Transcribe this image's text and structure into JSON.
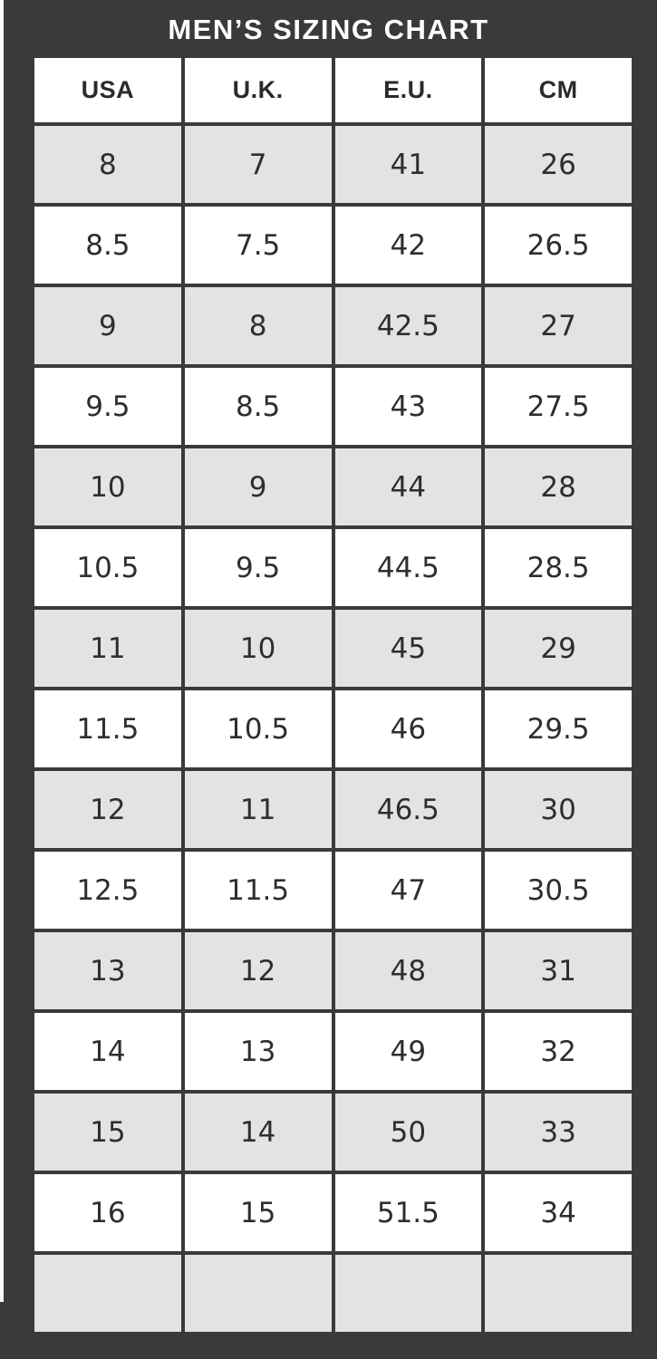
{
  "title": "MEN’S SIZING CHART",
  "chart_data": {
    "type": "table",
    "title": "MEN’S SIZING CHART",
    "columns": [
      "USA",
      "U.K.",
      "E.U.",
      "CM"
    ],
    "rows": [
      [
        "8",
        "7",
        "41",
        "26"
      ],
      [
        "8.5",
        "7.5",
        "42",
        "26.5"
      ],
      [
        "9",
        "8",
        "42.5",
        "27"
      ],
      [
        "9.5",
        "8.5",
        "43",
        "27.5"
      ],
      [
        "10",
        "9",
        "44",
        "28"
      ],
      [
        "10.5",
        "9.5",
        "44.5",
        "28.5"
      ],
      [
        "11",
        "10",
        "45",
        "29"
      ],
      [
        "11.5",
        "10.5",
        "46",
        "29.5"
      ],
      [
        "12",
        "11",
        "46.5",
        "30"
      ],
      [
        "12.5",
        "11.5",
        "47",
        "30.5"
      ],
      [
        "13",
        "12",
        "48",
        "31"
      ],
      [
        "14",
        "13",
        "49",
        "32"
      ],
      [
        "15",
        "14",
        "50",
        "33"
      ],
      [
        "16",
        "15",
        "51.5",
        "34"
      ],
      [
        "",
        "",
        "",
        ""
      ]
    ],
    "layout": {
      "row_striping": "alternating, first data row gray, last row empty gray",
      "grid": "dark gaps between cells"
    }
  },
  "colors": {
    "frame_background": "#3a3a3c",
    "row_alt": "#e3e3e4",
    "row_plain": "#ffffff",
    "cell_text": "#2e2e2e",
    "title_text": "#ffffff"
  }
}
